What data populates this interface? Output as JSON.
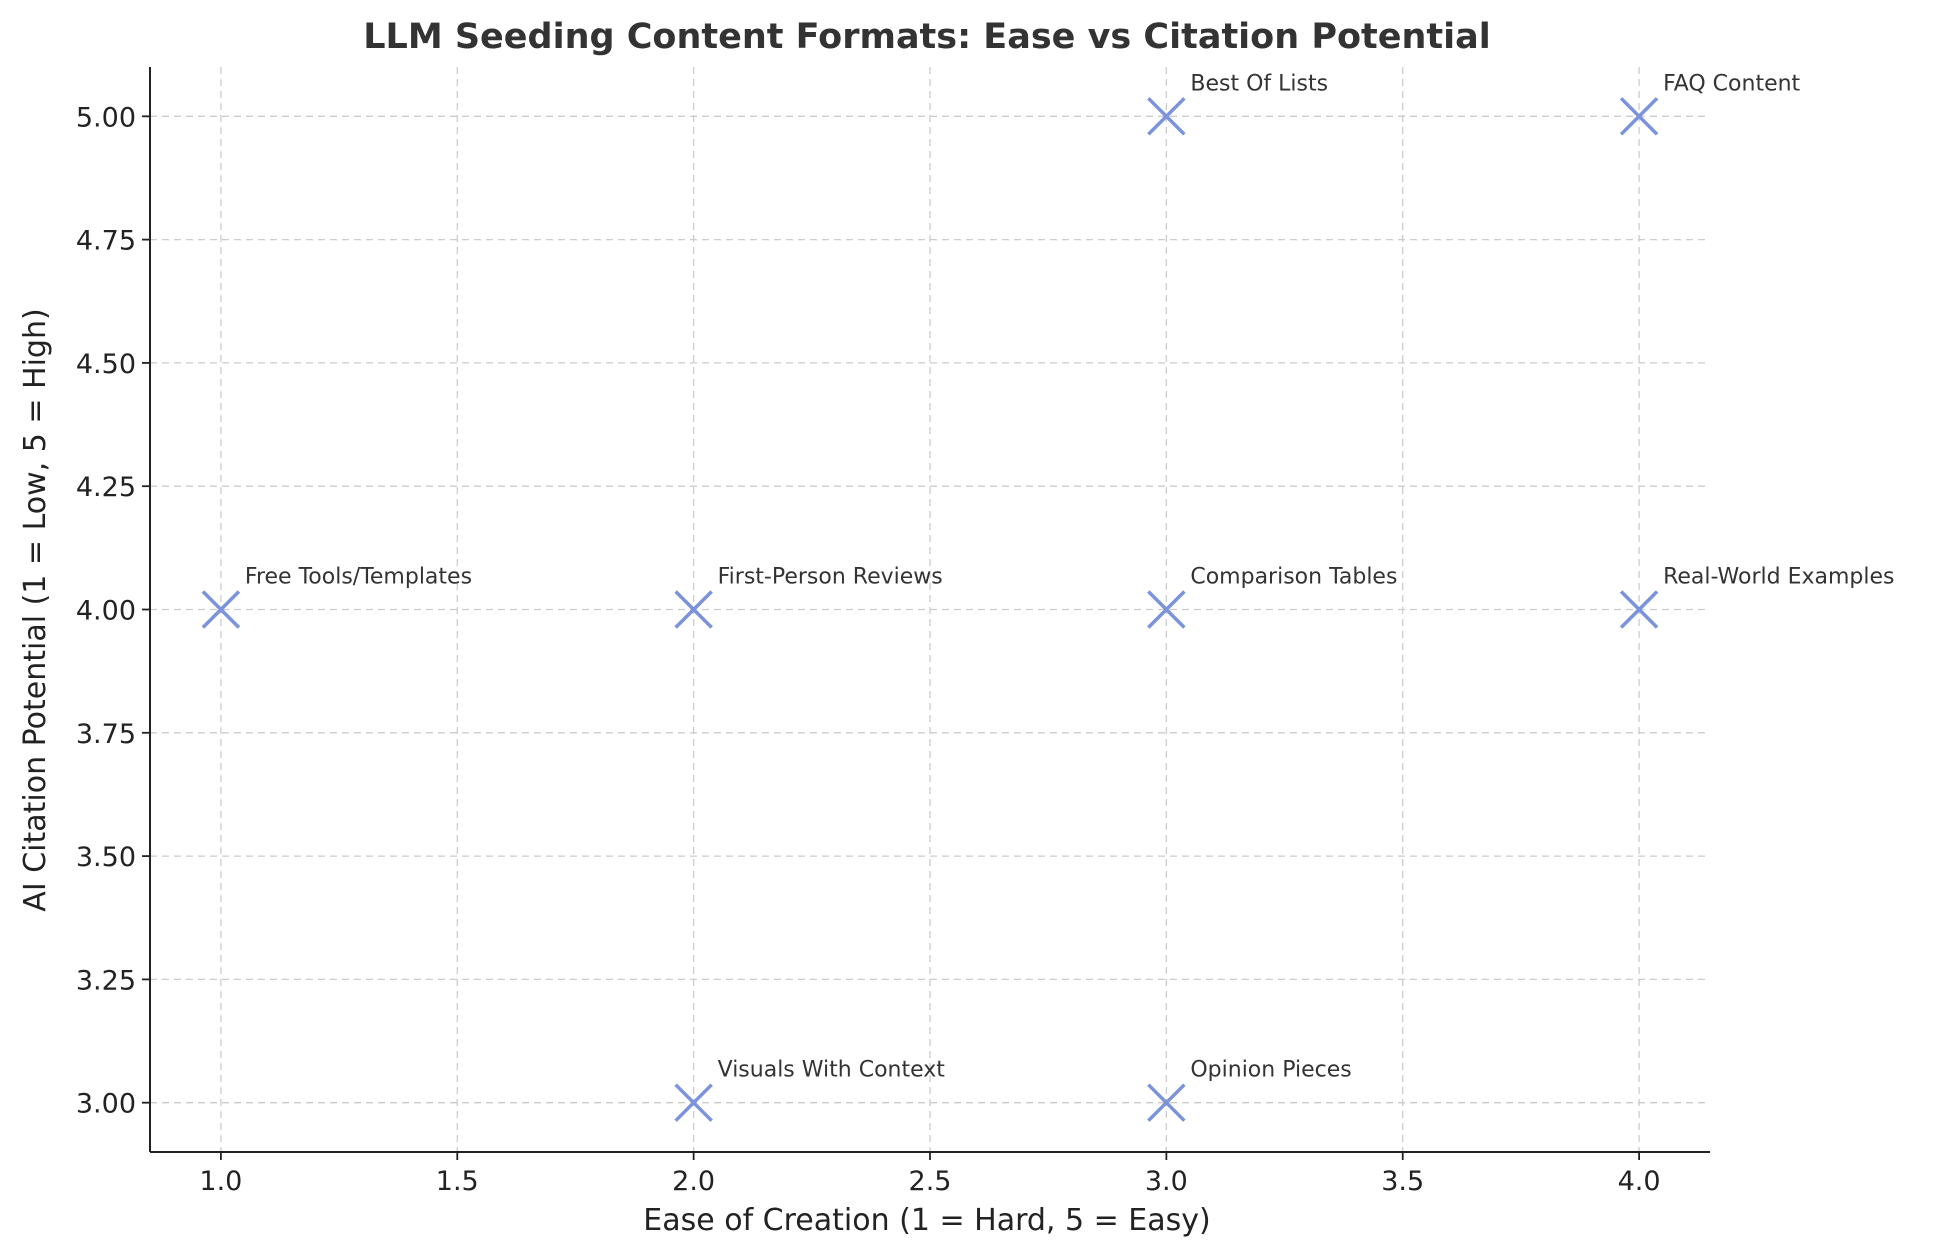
{
  "chart_data": {
    "type": "scatter",
    "title": "LLM Seeding Content Formats: Ease vs Citation Potential",
    "xlabel": "Ease of Creation (1 = Hard, 5 = Easy)",
    "ylabel": "AI Citation Potential (1 = Low, 5 = High)",
    "xlim": [
      0.85,
      4.15
    ],
    "ylim": [
      2.9,
      5.1
    ],
    "xticks": [
      1.0,
      1.5,
      2.0,
      2.5,
      3.0,
      3.5,
      4.0
    ],
    "yticks": [
      3.0,
      3.25,
      3.5,
      3.75,
      4.0,
      4.25,
      4.5,
      4.75,
      5.0
    ],
    "xtick_labels": [
      "1.0",
      "1.5",
      "2.0",
      "2.5",
      "3.0",
      "3.5",
      "4.0"
    ],
    "ytick_labels": [
      "3.00",
      "3.25",
      "3.50",
      "3.75",
      "4.00",
      "4.25",
      "4.50",
      "4.75",
      "5.00"
    ],
    "grid": true,
    "marker": "x",
    "marker_color": "#7b93dd",
    "points": [
      {
        "label": "Best Of Lists",
        "x": 3,
        "y": 5
      },
      {
        "label": "FAQ Content",
        "x": 4,
        "y": 5
      },
      {
        "label": "Free Tools/Templates",
        "x": 1,
        "y": 4
      },
      {
        "label": "First-Person Reviews",
        "x": 2,
        "y": 4
      },
      {
        "label": "Comparison Tables",
        "x": 3,
        "y": 4
      },
      {
        "label": "Real-World Examples",
        "x": 4,
        "y": 4
      },
      {
        "label": "Visuals With Context",
        "x": 2,
        "y": 3
      },
      {
        "label": "Opinion Pieces",
        "x": 3,
        "y": 3
      }
    ]
  }
}
